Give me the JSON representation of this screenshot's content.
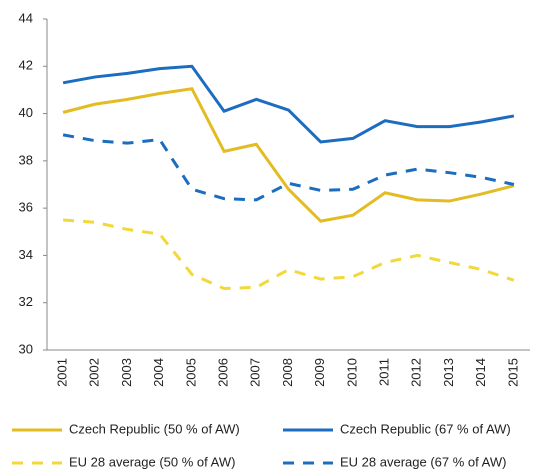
{
  "chart_data": {
    "type": "line",
    "categories": [
      "2001",
      "2002",
      "2003",
      "2004",
      "2005",
      "2006",
      "2007",
      "2008",
      "2009",
      "2010",
      "2011",
      "2012",
      "2013",
      "2014",
      "2015"
    ],
    "series": [
      {
        "name": "Czech Republic (50 % of AW)",
        "color": "#e3bb22",
        "dashed": false,
        "values": [
          40.05,
          40.4,
          40.6,
          40.85,
          41.05,
          38.4,
          38.7,
          36.8,
          35.45,
          35.7,
          36.65,
          36.35,
          36.3,
          36.6,
          36.95
        ]
      },
      {
        "name": "Czech Republic (67 % of AW)",
        "color": "#1c6dbf",
        "dashed": false,
        "values": [
          41.3,
          41.55,
          41.7,
          41.9,
          42.0,
          40.1,
          40.6,
          40.15,
          38.8,
          38.95,
          39.7,
          39.45,
          39.45,
          39.65,
          39.9
        ]
      },
      {
        "name": "EU 28 average (50 % of AW)",
        "color": "#f3d83a",
        "dashed": true,
        "values": [
          35.5,
          35.4,
          35.1,
          34.9,
          33.2,
          32.6,
          32.65,
          33.4,
          33.0,
          33.1,
          33.7,
          34.0,
          33.7,
          33.4,
          32.95
        ]
      },
      {
        "name": "EU 28 average (67 % of AW)",
        "color": "#1c6dbf",
        "dashed": true,
        "values": [
          39.1,
          38.85,
          38.75,
          38.9,
          36.8,
          36.4,
          36.35,
          37.05,
          36.75,
          36.8,
          37.4,
          37.65,
          37.5,
          37.3,
          37.0
        ]
      }
    ],
    "ylim": [
      30,
      44
    ],
    "yticks": [
      30,
      32,
      34,
      36,
      38,
      40,
      42,
      44
    ],
    "grid": false,
    "legend": "bottom"
  }
}
